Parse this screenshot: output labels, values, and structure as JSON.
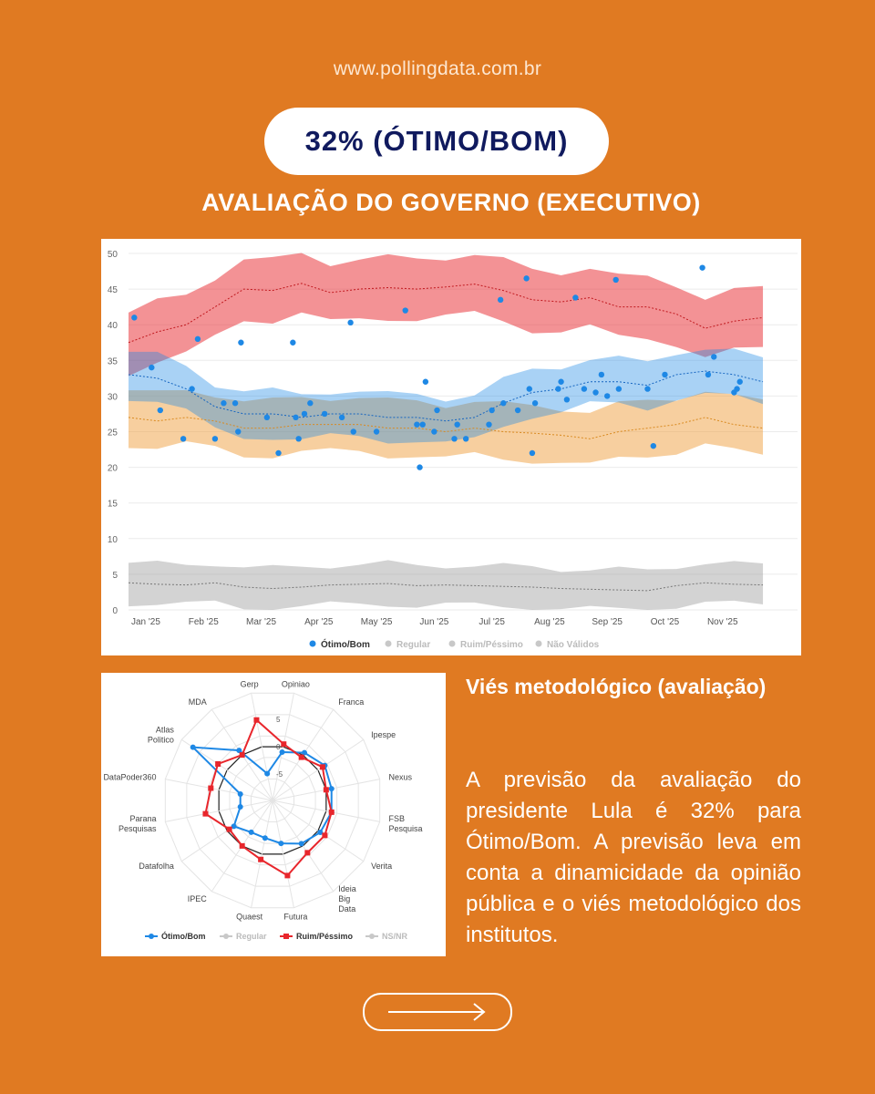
{
  "site": {
    "url": "www.pollingdata.com.br"
  },
  "headline": "32% (ÓTIMO/BOM)",
  "section_title": "AVALIAÇÃO DO GOVERNO (EXECUTIVO)",
  "colors": {
    "background": "#e07a22",
    "otimo_bom": "#1e88e5",
    "regular": "#f0a040",
    "ruim_pessimo": "#e8262c",
    "nao_validos": "#9e9e9e"
  },
  "chart_data": [
    {
      "type": "line",
      "x_ticks": [
        "Jan '25",
        "Feb '25",
        "Mar '25",
        "Apr '25",
        "May '25",
        "Jun '25",
        "Jul '25",
        "Aug '25",
        "Sep '25",
        "Oct '25",
        "Nov '25"
      ],
      "y_ticks": [
        "0",
        "5",
        "10",
        "15",
        "20",
        "25",
        "30",
        "35",
        "40",
        "45",
        "50"
      ],
      "ylim": [
        0,
        50
      ],
      "grid": true,
      "legend_position": "bottom",
      "legend": [
        "Ótimo/Bom",
        "Regular",
        "Ruim/Péssimo",
        "Não Válidos"
      ],
      "series": [
        {
          "name": "Ótimo/Bom",
          "color": "#1e88e5",
          "trend": [
            [
              0,
              33
            ],
            [
              0.5,
              32.5
            ],
            [
              1,
              31
            ],
            [
              1.5,
              28.5
            ],
            [
              2,
              27.5
            ],
            [
              2.5,
              27.5
            ],
            [
              3,
              27
            ],
            [
              3.5,
              27.5
            ],
            [
              4,
              27.5
            ],
            [
              4.5,
              27
            ],
            [
              5,
              27
            ],
            [
              5.5,
              26.5
            ],
            [
              6,
              27
            ],
            [
              6.5,
              29
            ],
            [
              7,
              30.5
            ],
            [
              7.5,
              31
            ],
            [
              8,
              32
            ],
            [
              8.5,
              32
            ],
            [
              9,
              31.5
            ],
            [
              9.5,
              33
            ],
            [
              10,
              33.5
            ],
            [
              10.5,
              33
            ],
            [
              11,
              32
            ]
          ],
          "band": 3.2,
          "points": [
            [
              0.1,
              41
            ],
            [
              0.4,
              34
            ],
            [
              0.55,
              28
            ],
            [
              0.95,
              24
            ],
            [
              1.1,
              31
            ],
            [
              1.2,
              38
            ],
            [
              1.5,
              24
            ],
            [
              1.65,
              29
            ],
            [
              1.85,
              29
            ],
            [
              1.9,
              25
            ],
            [
              1.95,
              37.5
            ],
            [
              2.4,
              27
            ],
            [
              2.6,
              22
            ],
            [
              2.85,
              37.5
            ],
            [
              2.9,
              27
            ],
            [
              2.95,
              24
            ],
            [
              3.05,
              27.5
            ],
            [
              3.15,
              29
            ],
            [
              3.4,
              27.5
            ],
            [
              3.7,
              27
            ],
            [
              3.85,
              40.3
            ],
            [
              3.9,
              25
            ],
            [
              4.3,
              25
            ],
            [
              4.8,
              42
            ],
            [
              5.0,
              26
            ],
            [
              5.05,
              20
            ],
            [
              5.1,
              26
            ],
            [
              5.15,
              32
            ],
            [
              5.3,
              25
            ],
            [
              5.35,
              28
            ],
            [
              5.65,
              24
            ],
            [
              5.7,
              26
            ],
            [
              5.85,
              24
            ],
            [
              6.25,
              26
            ],
            [
              6.3,
              28
            ],
            [
              6.45,
              43.5
            ],
            [
              6.5,
              29
            ],
            [
              6.75,
              28
            ],
            [
              6.9,
              46.5
            ],
            [
              6.95,
              31
            ],
            [
              7.0,
              22
            ],
            [
              7.05,
              29
            ],
            [
              7.45,
              31
            ],
            [
              7.5,
              32
            ],
            [
              7.6,
              29.5
            ],
            [
              7.75,
              43.8
            ],
            [
              7.9,
              31
            ],
            [
              8.1,
              30.5
            ],
            [
              8.2,
              33
            ],
            [
              8.3,
              30
            ],
            [
              8.45,
              46.3
            ],
            [
              8.5,
              31
            ],
            [
              9.0,
              31
            ],
            [
              9.1,
              23
            ],
            [
              9.3,
              33
            ],
            [
              9.95,
              48
            ],
            [
              10.05,
              33
            ],
            [
              10.15,
              35.5
            ],
            [
              10.5,
              30.5
            ],
            [
              10.55,
              31
            ],
            [
              10.6,
              32
            ]
          ]
        },
        {
          "name": "Regular",
          "color": "#f0a040",
          "trend": [
            [
              0,
              27
            ],
            [
              0.5,
              26.5
            ],
            [
              1,
              27
            ],
            [
              1.5,
              26.5
            ],
            [
              2,
              25.5
            ],
            [
              2.5,
              25.5
            ],
            [
              3,
              26
            ],
            [
              3.5,
              26
            ],
            [
              4,
              26
            ],
            [
              4.5,
              25.5
            ],
            [
              5,
              25.5
            ],
            [
              5.5,
              25
            ],
            [
              6,
              25.5
            ],
            [
              6.5,
              25
            ],
            [
              7,
              24.8
            ],
            [
              7.5,
              24.5
            ],
            [
              8,
              24
            ],
            [
              8.5,
              25
            ],
            [
              9,
              25.5
            ],
            [
              9.5,
              26
            ],
            [
              10,
              27
            ],
            [
              10.5,
              26
            ],
            [
              11,
              25.5
            ]
          ],
          "band": 3.8
        },
        {
          "name": "Ruim/Péssimo",
          "color": "#e8262c",
          "trend": [
            [
              0,
              37.5
            ],
            [
              0.5,
              39
            ],
            [
              1,
              40
            ],
            [
              1.5,
              42.5
            ],
            [
              2,
              45
            ],
            [
              2.5,
              44.8
            ],
            [
              3,
              45.8
            ],
            [
              3.5,
              44.5
            ],
            [
              4,
              45
            ],
            [
              4.5,
              45.2
            ],
            [
              5,
              45
            ],
            [
              5.5,
              45.3
            ],
            [
              6,
              45.7
            ],
            [
              6.5,
              44.8
            ],
            [
              7,
              43.5
            ],
            [
              7.5,
              43.2
            ],
            [
              8,
              43.8
            ],
            [
              8.5,
              42.5
            ],
            [
              9,
              42.5
            ],
            [
              9.5,
              41.5
            ],
            [
              10,
              39.5
            ],
            [
              10.5,
              40.5
            ],
            [
              11,
              41
            ]
          ],
          "band": 4.2
        },
        {
          "name": "Não Válidos",
          "color": "#9e9e9e",
          "trend": [
            [
              0,
              3.8
            ],
            [
              0.5,
              3.6
            ],
            [
              1,
              3.5
            ],
            [
              1.5,
              3.8
            ],
            [
              2,
              3.2
            ],
            [
              2.5,
              3
            ],
            [
              3,
              3.2
            ],
            [
              3.5,
              3.5
            ],
            [
              4,
              3.6
            ],
            [
              4.5,
              3.7
            ],
            [
              5,
              3.4
            ],
            [
              5.5,
              3.5
            ],
            [
              6,
              3.4
            ],
            [
              6.5,
              3.3
            ],
            [
              7,
              3.2
            ],
            [
              7.5,
              3
            ],
            [
              8,
              2.9
            ],
            [
              8.5,
              2.8
            ],
            [
              9,
              2.7
            ],
            [
              9.5,
              3.4
            ],
            [
              10,
              3.8
            ],
            [
              10.5,
              3.6
            ],
            [
              11,
              3.5
            ]
          ],
          "band": 2.8
        }
      ]
    },
    {
      "type": "radar",
      "axes": [
        "Opiniao",
        "Franca",
        "Ipespe",
        "Nexus",
        "FSB Pesquisa",
        "Verita",
        "Ideia Big Data",
        "Futura",
        "Quaest",
        "IPEC",
        "Datafolha",
        "Parana Pesquisas",
        "DataPoder360",
        "Atlas Politico",
        "MDA",
        "Gerp"
      ],
      "axis_labels": [
        [
          "Opiniao"
        ],
        [
          "Franca"
        ],
        [
          "Ipespe"
        ],
        [
          "Nexus"
        ],
        [
          "FSB",
          "Pesquisa"
        ],
        [
          "Verita"
        ],
        [
          "Ideia",
          "Big",
          "Data"
        ],
        [
          "Futura"
        ],
        [
          "Quaest"
        ],
        [
          "IPEC"
        ],
        [
          "Datafolha"
        ],
        [
          "Parana",
          "Pesquisas"
        ],
        [
          "DataPoder360"
        ],
        [
          "Atlas",
          "Politico"
        ],
        [
          "MDA"
        ],
        [
          "Gerp"
        ]
      ],
      "ticks": [
        "5",
        "0",
        "-5"
      ],
      "range": [
        -10,
        10
      ],
      "legend_position": "bottom",
      "legend": [
        "Ótimo/Bom",
        "Regular",
        "Ruim/Péssimo",
        "NS/NR"
      ],
      "series": [
        {
          "name": "Ótimo/Bom",
          "color": "#1e88e5",
          "values": [
            -1,
            0.5,
            1.5,
            1,
            1,
            0.5,
            -0.5,
            -2,
            -3,
            -3,
            -1.5,
            -4,
            -4,
            7.5,
            1,
            -5
          ]
        },
        {
          "name": "Ruim/Péssimo",
          "color": "#e8262c",
          "values": [
            0.5,
            -0.5,
            1,
            0,
            1,
            1.5,
            1.5,
            4,
            1,
            0,
            -0.5,
            2.5,
            1.5,
            2,
            0,
            5
          ]
        }
      ]
    }
  ],
  "side_panel": {
    "heading": "Viés metodológico (avaliação)",
    "body": "A previsão da avaliação do presidente Lula é 32% para Ótimo/Bom. A previsão leva em conta a dinamicidade da opinião pública e o viés metodológico dos institutos."
  },
  "next_button": {
    "icon": "arrow-right-icon"
  }
}
